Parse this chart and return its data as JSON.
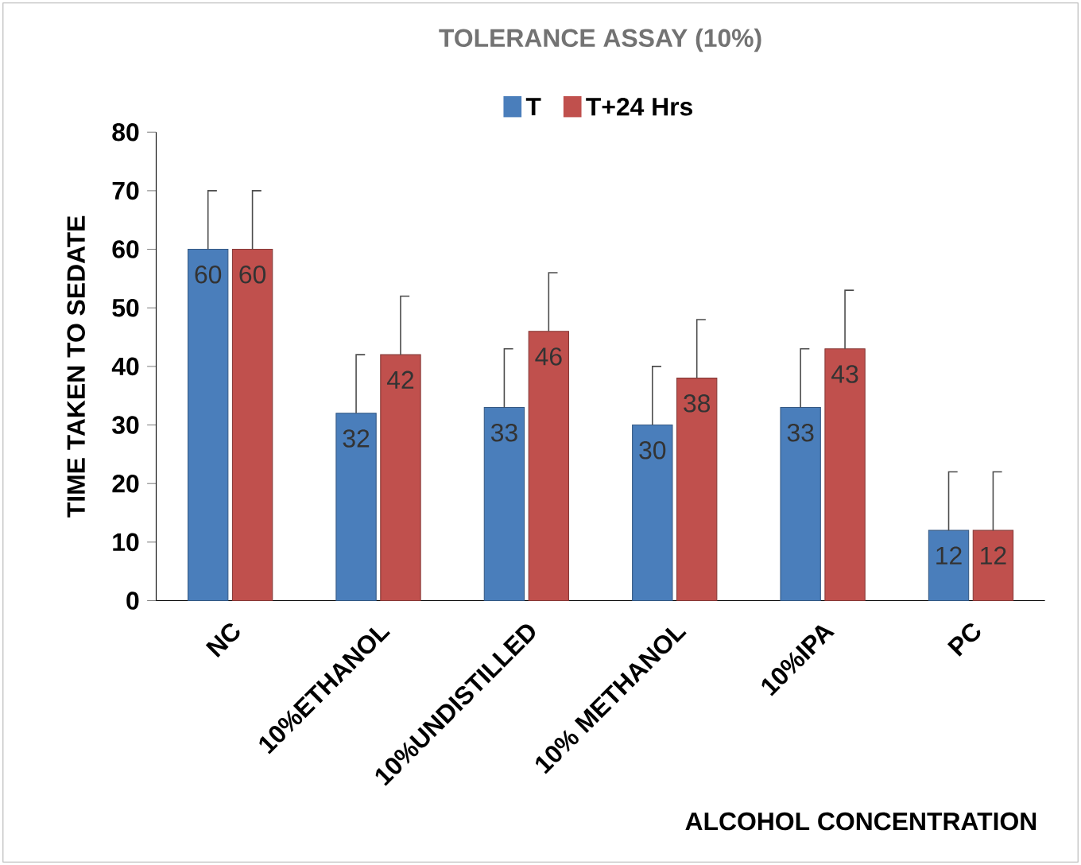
{
  "chart_data": {
    "type": "bar",
    "title": "TOLERANCE ASSAY (10%)",
    "xlabel": "ALCOHOL CONCENTRATION",
    "ylabel": "TIME TAKEN TO SEDATE",
    "categories": [
      "NC",
      "10%ETHANOL",
      "10%UNDISTILLED",
      "10% METHANOL",
      "10%IPA",
      "PC"
    ],
    "series": [
      {
        "name": "T",
        "color": "#4a7ebb",
        "values": [
          60,
          32,
          33,
          30,
          33,
          12
        ],
        "errors": [
          [
            60,
            70
          ],
          [
            32,
            42
          ],
          [
            33,
            43
          ],
          [
            30,
            40
          ],
          [
            33,
            43
          ],
          [
            12,
            22
          ]
        ]
      },
      {
        "name": "T+24 Hrs",
        "color": "#c0504d",
        "values": [
          60,
          42,
          46,
          38,
          43,
          12
        ],
        "errors": [
          [
            60,
            70
          ],
          [
            42,
            52
          ],
          [
            46,
            56
          ],
          [
            38,
            48
          ],
          [
            43,
            53
          ],
          [
            12,
            22
          ]
        ]
      }
    ],
    "ylim": [
      0,
      80
    ],
    "yticks": [
      0,
      10,
      20,
      30,
      40,
      50,
      60,
      70,
      80
    ],
    "data_labels": true,
    "legend": "top",
    "grid": false
  }
}
